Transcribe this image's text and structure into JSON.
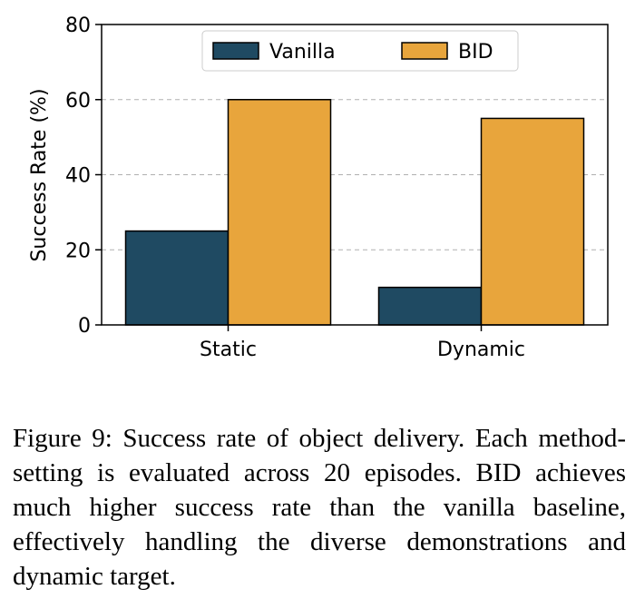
{
  "chart_data": {
    "type": "bar",
    "categories": [
      "Static",
      "Dynamic"
    ],
    "series": [
      {
        "name": "Vanilla",
        "values": [
          25,
          10
        ],
        "color": "#1f4a62"
      },
      {
        "name": "BID",
        "values": [
          60,
          55
        ],
        "color": "#e8a53c"
      }
    ],
    "ylabel": "Success Rate (%)",
    "ylim": [
      0,
      80
    ],
    "yticks": [
      0,
      20,
      40,
      60,
      80
    ],
    "grid": "y-dashed",
    "legend_position": "top-center"
  },
  "caption": "Figure 9: Success rate of object delivery. Each method-setting is evaluated across 20 episodes. BID achieves much higher success rate than the vanilla baseline, effectively handling the diverse demonstrations and dynamic target."
}
